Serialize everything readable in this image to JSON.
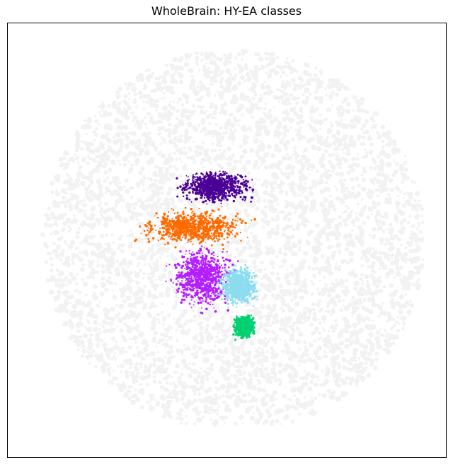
{
  "chart_data": {
    "type": "scatter",
    "title": "WholeBrain: HY-EA classes",
    "xlabel": "",
    "ylabel": "",
    "axes_ticks": false,
    "background_color": "#f2f2f2",
    "series": [
      {
        "color": "#4b0096",
        "centroid": [
          305,
          264
        ],
        "spread": [
          62,
          28
        ]
      },
      {
        "color": "#ff6a00",
        "centroid": [
          272,
          322
        ],
        "spread": [
          92,
          32
        ]
      },
      {
        "color": "#b41eff",
        "centroid": [
          285,
          393
        ],
        "spread": [
          55,
          52
        ]
      },
      {
        "color": "#8cdcf0",
        "centroid": [
          337,
          405
        ],
        "spread": [
          33,
          33
        ]
      },
      {
        "color": "#00d070",
        "centroid": [
          345,
          462
        ],
        "spread": [
          18,
          20
        ]
      }
    ]
  }
}
